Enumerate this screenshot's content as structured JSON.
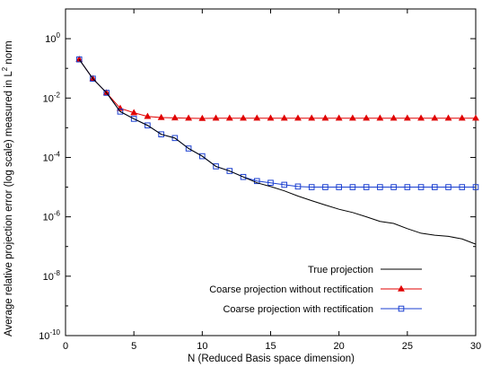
{
  "chart_data": {
    "type": "line",
    "title": "",
    "xlabel": "N (Reduced Basis space dimension)",
    "ylabel_text": "Average relative projection error (log scale) measured in L",
    "ylabel_sup": "2",
    "ylabel_suffix": " norm",
    "yscale": "log",
    "xlim": [
      0,
      30
    ],
    "ylim": [
      1e-10,
      10
    ],
    "grid": false,
    "legend_position": "bottom-right",
    "x_ticks": [
      0,
      5,
      10,
      15,
      20,
      25,
      30
    ],
    "y_ticks": [
      {
        "value": 1,
        "base": "10",
        "exp": "0"
      },
      {
        "value": 0.01,
        "base": "10",
        "exp": "-2"
      },
      {
        "value": 0.0001,
        "base": "10",
        "exp": "-4"
      },
      {
        "value": 1e-06,
        "base": "10",
        "exp": "-6"
      },
      {
        "value": 1e-08,
        "base": "10",
        "exp": "-8"
      },
      {
        "value": 1e-10,
        "base": "10",
        "exp": "-10"
      }
    ],
    "series": [
      {
        "name": "True projection",
        "color": "#000000",
        "marker": "none",
        "x": [
          1,
          2,
          3,
          4,
          5,
          6,
          7,
          8,
          9,
          10,
          11,
          12,
          13,
          14,
          15,
          16,
          17,
          18,
          19,
          20,
          21,
          22,
          23,
          24,
          25,
          26,
          27,
          28,
          29,
          30
        ],
        "y": [
          0.2,
          0.045,
          0.015,
          0.0035,
          0.002,
          0.0012,
          0.0006,
          0.00045,
          0.0002,
          0.00011,
          5e-05,
          3.5e-05,
          2.2e-05,
          1.4e-05,
          1.05e-05,
          7.5e-06,
          5e-06,
          3.5e-06,
          2.5e-06,
          1.8e-06,
          1.4e-06,
          1e-06,
          7e-07,
          6e-07,
          4e-07,
          2.8e-07,
          2.4e-07,
          2.2e-07,
          1.8e-07,
          1.2e-07
        ]
      },
      {
        "name": "Coarse projection without rectification",
        "color": "#e00000",
        "marker": "triangle",
        "x": [
          1,
          2,
          3,
          4,
          5,
          6,
          7,
          8,
          9,
          10,
          11,
          12,
          13,
          14,
          15,
          16,
          17,
          18,
          19,
          20,
          21,
          22,
          23,
          24,
          25,
          26,
          27,
          28,
          29,
          30
        ],
        "y": [
          0.2,
          0.045,
          0.015,
          0.0045,
          0.0032,
          0.0024,
          0.0022,
          0.00215,
          0.0021,
          0.00205,
          0.0021,
          0.0021,
          0.0021,
          0.0021,
          0.0021,
          0.0021,
          0.0021,
          0.0021,
          0.0021,
          0.0021,
          0.0021,
          0.0021,
          0.0021,
          0.0021,
          0.0021,
          0.0021,
          0.0021,
          0.0021,
          0.0021,
          0.0021
        ]
      },
      {
        "name": "Coarse projection with rectification",
        "color": "#1a3fd0",
        "marker": "square",
        "x": [
          1,
          2,
          3,
          4,
          5,
          6,
          7,
          8,
          9,
          10,
          11,
          12,
          13,
          14,
          15,
          16,
          17,
          18,
          19,
          20,
          21,
          22,
          23,
          24,
          25,
          26,
          27,
          28,
          29,
          30
        ],
        "y": [
          0.2,
          0.045,
          0.015,
          0.0035,
          0.002,
          0.0012,
          0.0006,
          0.00045,
          0.0002,
          0.00011,
          5e-05,
          3.5e-05,
          2.2e-05,
          1.6e-05,
          1.4e-05,
          1.2e-05,
          1.05e-05,
          1e-05,
          1e-05,
          1e-05,
          1e-05,
          1e-05,
          1e-05,
          1e-05,
          1e-05,
          1e-05,
          1e-05,
          1e-05,
          1e-05,
          1e-05
        ]
      }
    ]
  }
}
